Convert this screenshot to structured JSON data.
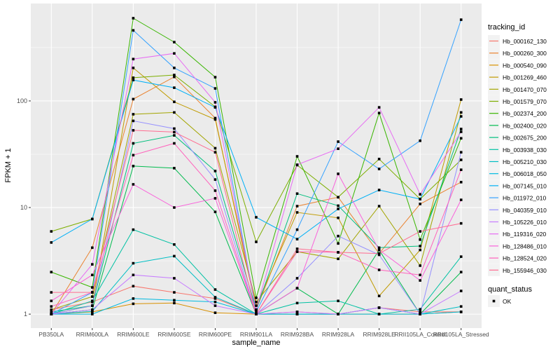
{
  "chart_data": {
    "type": "line",
    "xlabel": "sample_name",
    "ylabel": "FPKM + 1",
    "yscale": "log10",
    "ylim": [
      0.74,
      820
    ],
    "yticks": [
      {
        "value": 1,
        "label": "1"
      },
      {
        "value": 10,
        "label": "10"
      },
      {
        "value": 100,
        "label": "100"
      }
    ],
    "grid": true,
    "legend_position": "right",
    "categories": [
      "PB350LA",
      "RRIM600LA",
      "RRIM600LE",
      "RRIM600SE",
      "RRIM600PE",
      "RRIM901LA",
      "RRIM928BA",
      "RRIM928LA",
      "RRIM928LE",
      "RRII105LA_Control",
      "RRII105LA_Stressed"
    ],
    "legend_title": "tracking_id",
    "series": [
      {
        "name": "Hb_000162_130",
        "color": "#F8766D",
        "values": [
          1.1,
          1.3,
          1.83,
          1.6,
          1.4,
          1.0,
          1.05,
          1.0,
          1.15,
          1.05,
          1.05
        ]
      },
      {
        "name": "Hb_000260_300",
        "color": "#EA8331",
        "values": [
          1.0,
          4.2,
          104,
          168,
          69,
          1.1,
          10.3,
          12.5,
          3.7,
          10.8,
          17.3
        ]
      },
      {
        "name": "Hb_000540_090",
        "color": "#D89000",
        "values": [
          1.0,
          1.05,
          1.25,
          1.27,
          1.03,
          1.0,
          1.0,
          1.0,
          1.0,
          1.0,
          1.05
        ]
      },
      {
        "name": "Hb_001269_460",
        "color": "#C09B00",
        "values": [
          1.0,
          1.2,
          204,
          98,
          67,
          1.2,
          9.0,
          8.0,
          1.48,
          4.0,
          103
        ]
      },
      {
        "name": "Hb_001470_070",
        "color": "#A3A500",
        "values": [
          1.1,
          1.46,
          75,
          78,
          36,
          1.3,
          3.85,
          3.3,
          10.3,
          2.85,
          78
        ]
      },
      {
        "name": "Hb_001579_070",
        "color": "#7CAE00",
        "values": [
          5.97,
          7.8,
          165,
          175,
          88,
          4.76,
          25,
          12.5,
          28.5,
          12,
          28
        ]
      },
      {
        "name": "Hb_002374_200",
        "color": "#39B600",
        "values": [
          2.48,
          1.78,
          597,
          356,
          167,
          1.42,
          30.2,
          4.6,
          77,
          5.0,
          44.6
        ]
      },
      {
        "name": "Hb_002400_020",
        "color": "#00BB4E",
        "values": [
          1.0,
          1.1,
          24.5,
          23.4,
          9.1,
          1.0,
          1.75,
          1.0,
          4.0,
          1.0,
          2.48
        ]
      },
      {
        "name": "Hb_002675_200",
        "color": "#00BF7D",
        "values": [
          1.05,
          1.2,
          40,
          47.5,
          22,
          1.1,
          13.5,
          10.4,
          4.2,
          4.35,
          54.5
        ]
      },
      {
        "name": "Hb_003938_030",
        "color": "#00C1A3",
        "values": [
          1.0,
          1.33,
          6.2,
          4.5,
          1.7,
          1.0,
          1.27,
          1.33,
          1.0,
          1.11,
          3.46
        ]
      },
      {
        "name": "Hb_005210_030",
        "color": "#00BFC4",
        "values": [
          1.0,
          1.06,
          3.0,
          3.5,
          1.44,
          1.0,
          1.0,
          1.0,
          1.15,
          1.0,
          1.18
        ]
      },
      {
        "name": "Hb_006018_050",
        "color": "#00BAE0",
        "values": [
          1.0,
          1.0,
          1.4,
          1.35,
          1.3,
          1.0,
          1.0,
          1.0,
          1.0,
          1.0,
          1.05
        ]
      },
      {
        "name": "Hb_007145_010",
        "color": "#00B0F6",
        "values": [
          4.7,
          7.8,
          157,
          133,
          87,
          8.1,
          5.05,
          9.7,
          14.6,
          12,
          71.6
        ]
      },
      {
        "name": "Hb_011972_010",
        "color": "#35A2FF",
        "values": [
          1.0,
          1.6,
          459,
          204,
          131,
          1.05,
          6.2,
          41.5,
          23,
          42.3,
          578
        ]
      },
      {
        "name": "Hb_040359_010",
        "color": "#9590FF",
        "values": [
          1.0,
          1.2,
          65,
          55,
          18.3,
          1.0,
          2.17,
          5.4,
          3.6,
          1.0,
          33
        ]
      },
      {
        "name": "Hb_105226_010",
        "color": "#C77CFF",
        "values": [
          1.0,
          1.1,
          2.33,
          2.17,
          1.2,
          1.0,
          1.05,
          1.0,
          1.15,
          1.0,
          1.65
        ]
      },
      {
        "name": "Hb_119316_020",
        "color": "#E76BF3",
        "values": [
          1.0,
          2.93,
          247,
          279,
          97,
          1.1,
          25.2,
          35.6,
          87,
          13.3,
          51.3
        ]
      },
      {
        "name": "Hb_128486_010",
        "color": "#FA62DB",
        "values": [
          1.33,
          2.33,
          16.5,
          10,
          12.2,
          1.0,
          1.75,
          20.7,
          4.0,
          2.07,
          11.8
        ]
      },
      {
        "name": "Hb_128524_020",
        "color": "#FF62BC",
        "values": [
          1.18,
          1.6,
          31,
          40,
          14.4,
          1.0,
          3.85,
          3.8,
          2.6,
          2.33,
          22.6
        ]
      },
      {
        "name": "Hb_155946_030",
        "color": "#FF6C91",
        "values": [
          1.6,
          1.6,
          53,
          51,
          33,
          1.0,
          4.1,
          3.8,
          3.7,
          5.97,
          7.1
        ]
      }
    ],
    "shape_legend": {
      "title": "quant_status",
      "items": [
        "OK"
      ]
    },
    "colors": {
      "panel": "#EBEBEB",
      "grid": "#FFFFFF",
      "point": "#000000"
    }
  }
}
